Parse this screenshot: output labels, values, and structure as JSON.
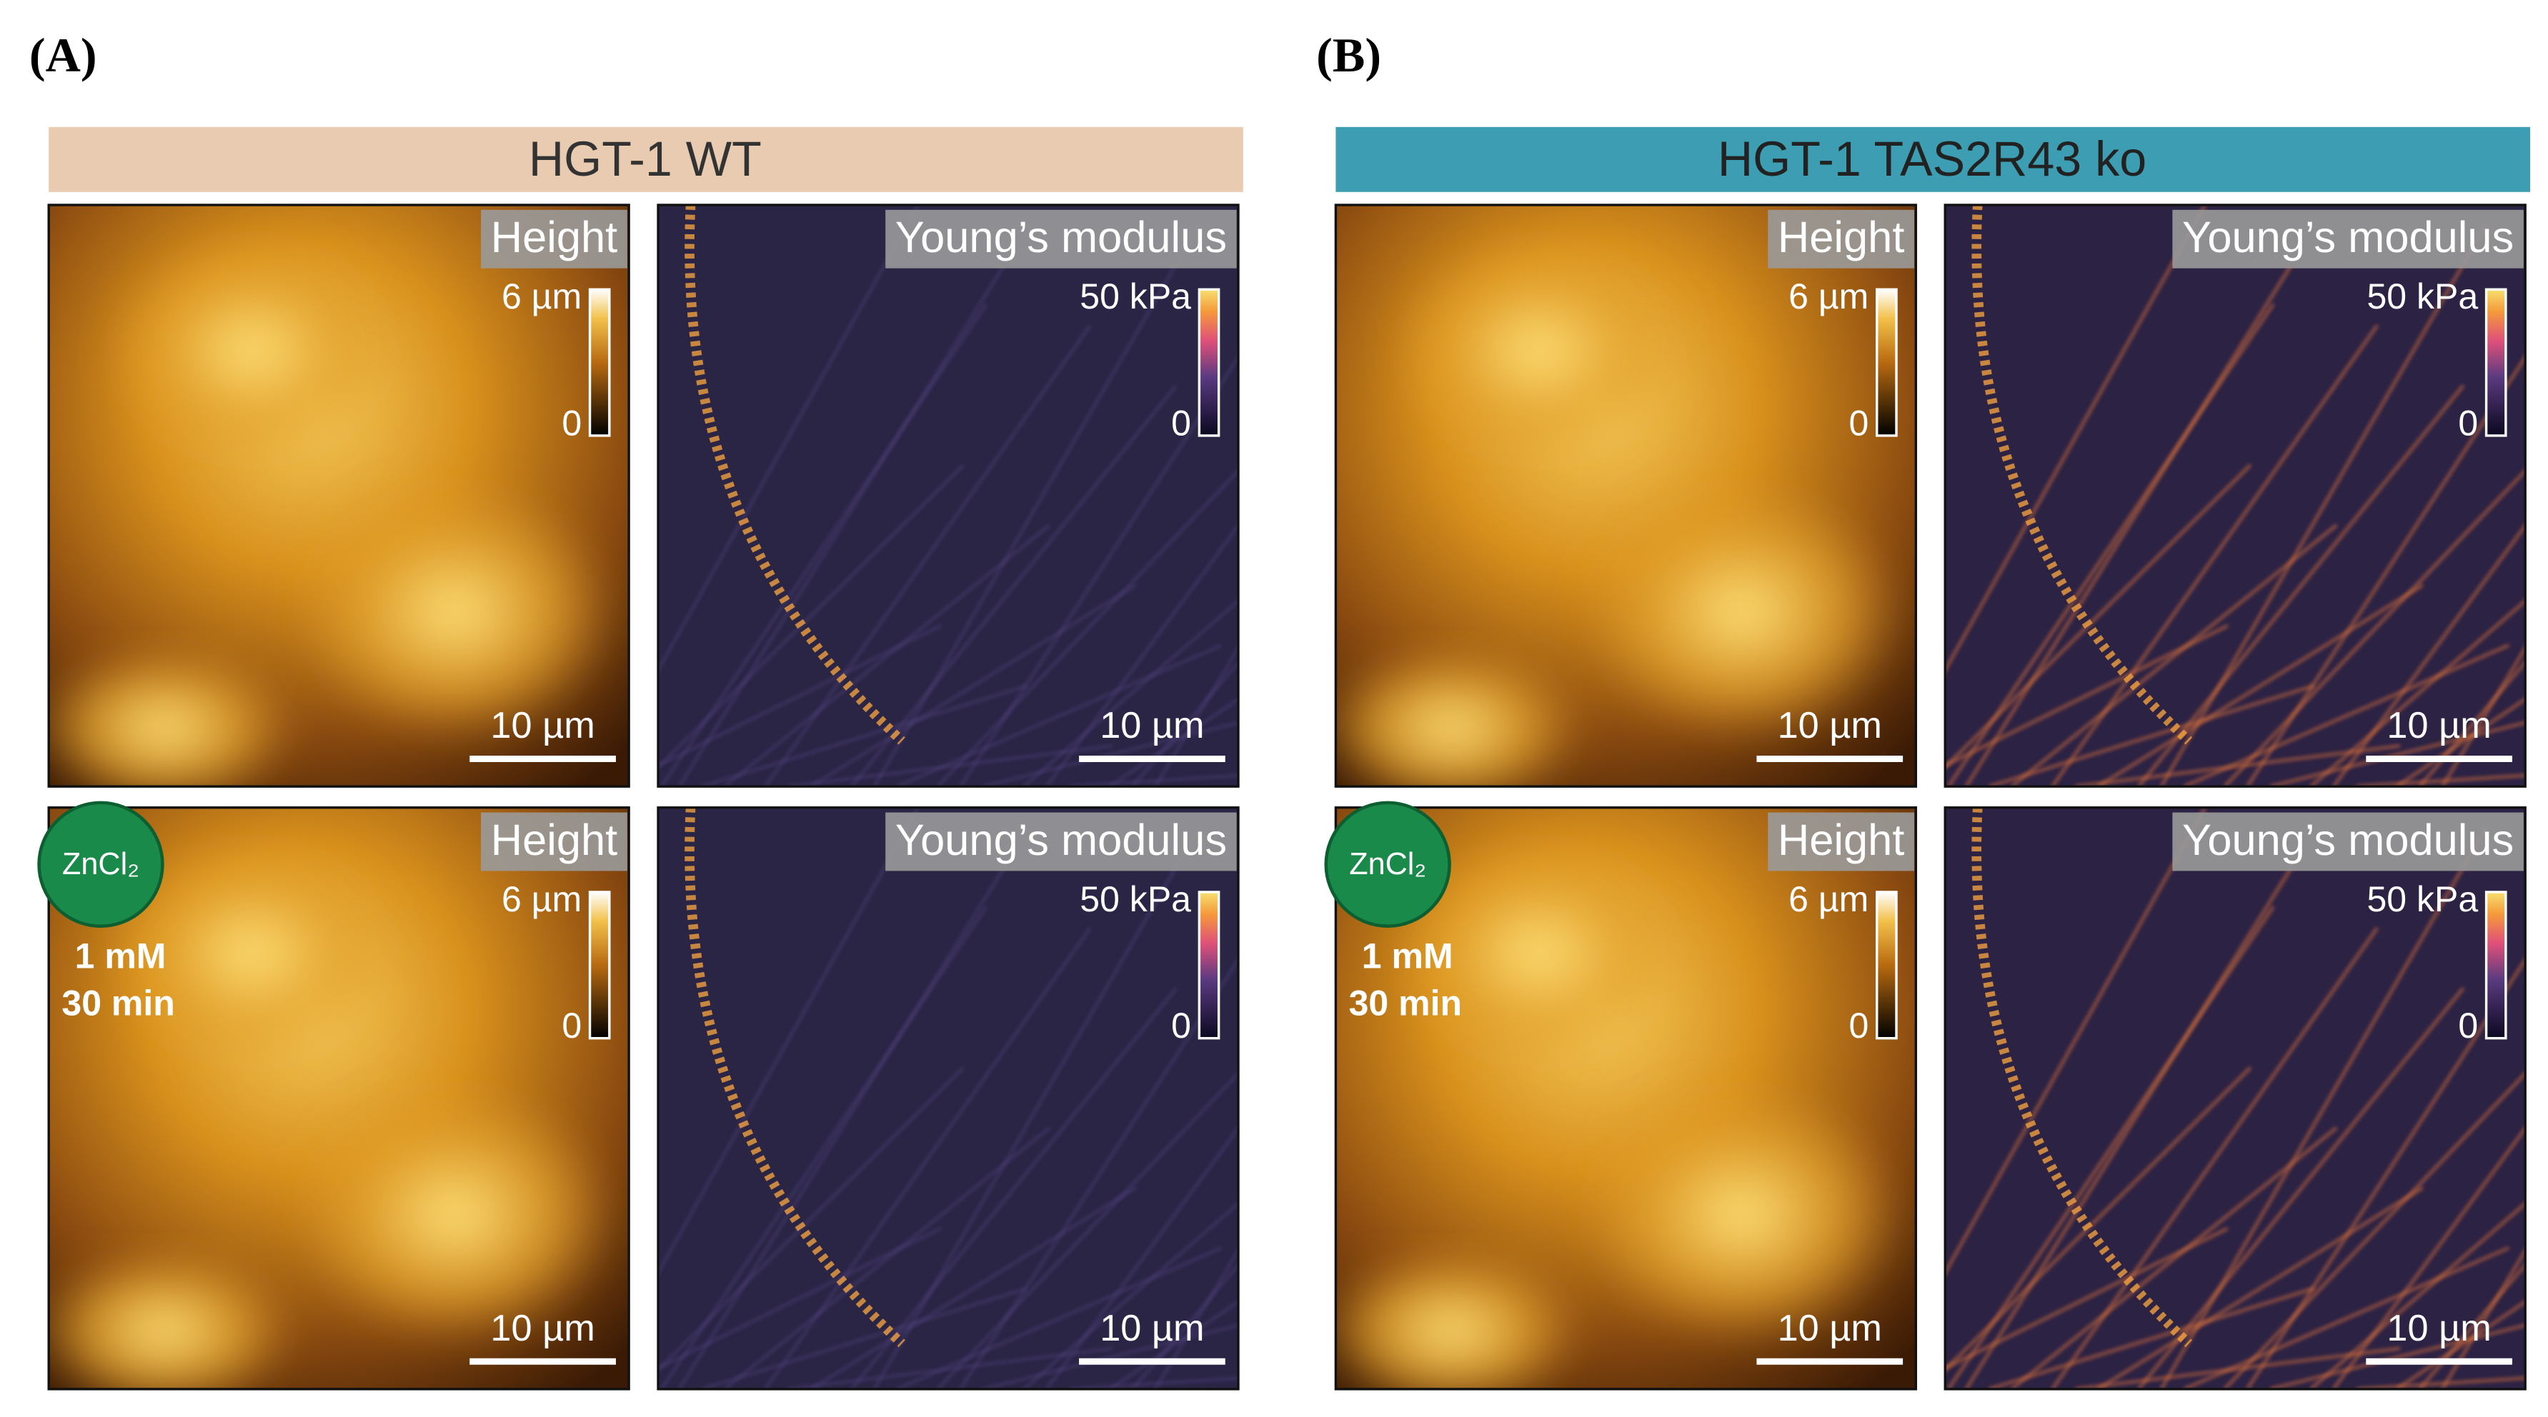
{
  "panels": [
    {
      "label": "(A)",
      "header": "HGT-1 WT",
      "header_color": "#e8cbb0",
      "header_text_color": "#333333",
      "rows": [
        {
          "images": [
            {
              "kind": "height",
              "title": "Height",
              "scale_max": "6 µm",
              "scale_min": "0",
              "scalebar": "10 µm"
            },
            {
              "kind": "modulus",
              "title": "Young’s modulus",
              "scale_max": "50 kPa",
              "scale_min": "0",
              "scalebar": "10 µm"
            }
          ]
        },
        {
          "treatment": {
            "compound": "ZnCl₂",
            "concentration": "1 mM",
            "duration": "30 min"
          },
          "images": [
            {
              "kind": "height",
              "title": "Height",
              "scale_max": "6 µm",
              "scale_min": "0",
              "scalebar": "10 µm"
            },
            {
              "kind": "modulus",
              "title": "Young’s modulus",
              "scale_max": "50 kPa",
              "scale_min": "0",
              "scalebar": "10 µm"
            }
          ]
        }
      ]
    },
    {
      "label": "(B)",
      "header": "HGT-1 TAS2R43 ko",
      "header_color": "#3d9db2",
      "header_text_color": "#222222",
      "rows": [
        {
          "images": [
            {
              "kind": "height",
              "title": "Height",
              "scale_max": "6 µm",
              "scale_min": "0",
              "scalebar": "10 µm"
            },
            {
              "kind": "modulus",
              "title": "Young’s modulus",
              "scale_max": "50 kPa",
              "scale_min": "0",
              "scalebar": "10 µm"
            }
          ]
        },
        {
          "treatment": {
            "compound": "ZnCl₂",
            "concentration": "1 mM",
            "duration": "30 min"
          },
          "images": [
            {
              "kind": "height",
              "title": "Height",
              "scale_max": "6 µm",
              "scale_min": "0",
              "scalebar": "10 µm"
            },
            {
              "kind": "modulus",
              "title": "Young’s modulus",
              "scale_max": "50 kPa",
              "scale_min": "0",
              "scalebar": "10 µm"
            }
          ]
        }
      ]
    }
  ]
}
